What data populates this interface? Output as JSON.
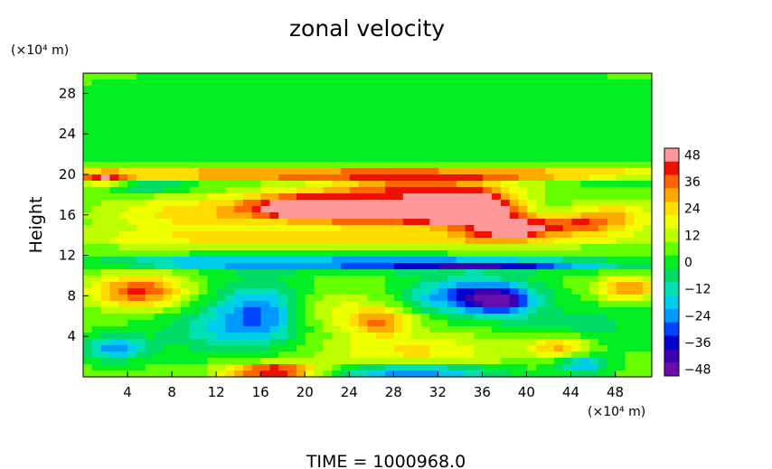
{
  "chart_data": {
    "type": "heatmap",
    "title": "zonal velocity",
    "xlabel": "",
    "ylabel": "Height",
    "x_unit": "(×10⁴ m)",
    "y_unit": "(×10⁴ m)",
    "x_range": [
      0,
      51.3
    ],
    "y_range": [
      0,
      30
    ],
    "x_ticks": [
      4,
      8,
      12,
      16,
      20,
      24,
      28,
      32,
      36,
      40,
      44,
      48
    ],
    "y_ticks": [
      4,
      8,
      12,
      16,
      20,
      24,
      28
    ],
    "colorbar": {
      "min": -48,
      "max": 48,
      "step": 6,
      "labels": [
        48,
        36,
        24,
        12,
        0,
        -12,
        -24,
        -36,
        -48
      ],
      "colors": {
        "-48": "#6a0dad",
        "-42": "#3a00b0",
        "-36": "#0000cc",
        "-30": "#0044ff",
        "-24": "#0099ff",
        "-18": "#00ccee",
        "-12": "#00e0b0",
        "-6": "#00dd66",
        "0": "#00ee22",
        "6": "#66ff00",
        "12": "#bbff00",
        "18": "#eeff00",
        "24": "#ffdd00",
        "30": "#ffaa00",
        "36": "#ff6600",
        "42": "#ee1100",
        "48": "#ff9999"
      }
    },
    "background_value": 4,
    "features": [
      {
        "x": 26,
        "y": 20.0,
        "sx": 24,
        "sy": 0.35,
        "v": 44
      },
      {
        "x": 20,
        "y": 16.8,
        "sx": 4.0,
        "sy": 0.9,
        "v": 46
      },
      {
        "x": 27,
        "y": 16.5,
        "sx": 5.0,
        "sy": 1.2,
        "v": 42
      },
      {
        "x": 33,
        "y": 16.6,
        "sx": 3.5,
        "sy": 1.0,
        "v": 44
      },
      {
        "x": 36,
        "y": 16.2,
        "sx": 2.5,
        "sy": 1.5,
        "v": 40
      },
      {
        "x": 39,
        "y": 14.6,
        "sx": 2.0,
        "sy": 0.7,
        "v": 34
      },
      {
        "x": 44,
        "y": 15.0,
        "sx": 3.0,
        "sy": 0.7,
        "v": 30
      },
      {
        "x": 30,
        "y": 18.8,
        "sx": 6.0,
        "sy": 0.6,
        "v": 28
      },
      {
        "x": 10,
        "y": 16.0,
        "sx": 6.0,
        "sy": 1.5,
        "v": 20
      },
      {
        "x": 48,
        "y": 16.0,
        "sx": 3.0,
        "sy": 1.0,
        "v": 20
      },
      {
        "x": 26,
        "y": 13.6,
        "sx": 20.0,
        "sy": 0.6,
        "v": 18
      },
      {
        "x": 2,
        "y": 19.5,
        "sx": 1.5,
        "sy": 0.5,
        "v": 28
      },
      {
        "x": 6,
        "y": 18.8,
        "sx": 3.0,
        "sy": 0.5,
        "v": -16
      },
      {
        "x": 49,
        "y": 19.4,
        "sx": 3.0,
        "sy": 0.4,
        "v": -10
      },
      {
        "x": 25,
        "y": 11.2,
        "sx": 12.0,
        "sy": 0.45,
        "v": -34
      },
      {
        "x": 38,
        "y": 11.0,
        "sx": 7.0,
        "sy": 0.35,
        "v": -26
      },
      {
        "x": 9,
        "y": 11.3,
        "sx": 5.0,
        "sy": 0.4,
        "v": -14
      },
      {
        "x": 5,
        "y": 8.5,
        "sx": 3.0,
        "sy": 1.2,
        "v": 36
      },
      {
        "x": 49,
        "y": 8.7,
        "sx": 2.0,
        "sy": 0.8,
        "v": 30
      },
      {
        "x": 35,
        "y": 8.0,
        "sx": 3.5,
        "sy": 1.2,
        "v": -40
      },
      {
        "x": 38,
        "y": 7.4,
        "sx": 2.0,
        "sy": 1.0,
        "v": -28
      },
      {
        "x": 16,
        "y": 6.5,
        "sx": 3.0,
        "sy": 2.0,
        "v": -30
      },
      {
        "x": 27,
        "y": 5.5,
        "sx": 2.0,
        "sy": 1.0,
        "v": 28
      },
      {
        "x": 22,
        "y": 6.5,
        "sx": 3.0,
        "sy": 1.5,
        "v": 14
      },
      {
        "x": 12,
        "y": 4.5,
        "sx": 4.0,
        "sy": 1.5,
        "v": -14
      },
      {
        "x": 3,
        "y": 2.8,
        "sx": 2.0,
        "sy": 0.8,
        "v": -28
      },
      {
        "x": 30,
        "y": 2.5,
        "sx": 6.0,
        "sy": 1.2,
        "v": 18
      },
      {
        "x": 45,
        "y": 5.0,
        "sx": 4.0,
        "sy": 1.5,
        "v": -10
      },
      {
        "x": 43,
        "y": 3.0,
        "sx": 2.0,
        "sy": 0.8,
        "v": 26
      },
      {
        "x": 17,
        "y": 0.6,
        "sx": 3.0,
        "sy": 0.5,
        "v": 46
      },
      {
        "x": 30,
        "y": 0.5,
        "sx": 5.0,
        "sy": 0.5,
        "v": -34
      },
      {
        "x": 45,
        "y": 1.2,
        "sx": 1.5,
        "sy": 0.6,
        "v": -28
      },
      {
        "x": 26,
        "y": 25.0,
        "sx": 30.0,
        "sy": 5.0,
        "v": -2
      }
    ]
  },
  "footer": {
    "time_label": "TIME = 1000968.0"
  }
}
